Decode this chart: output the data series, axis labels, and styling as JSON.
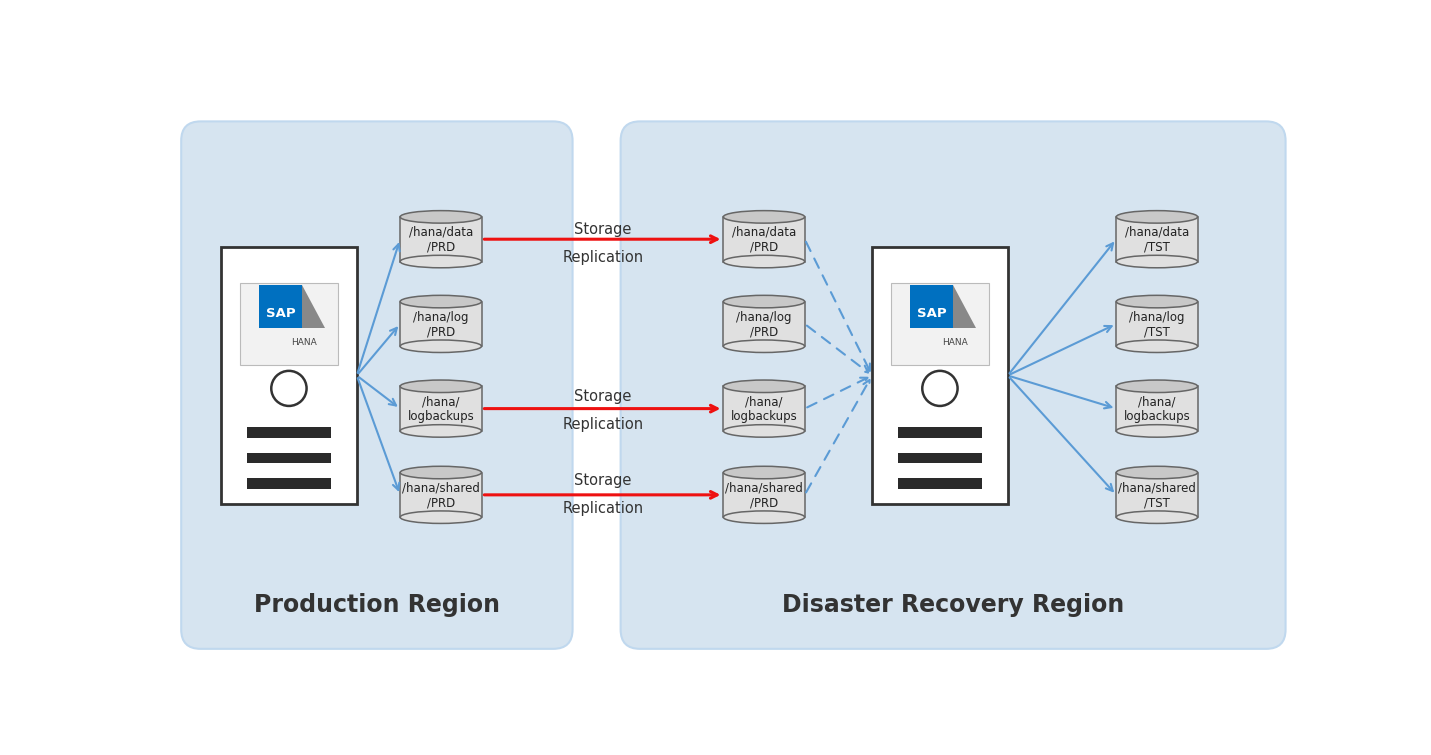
{
  "bg_color": "#FFFFFF",
  "region_bg": "#D6E4F0",
  "region_border": "#C0D8EE",
  "server_box_color": "#FFFFFF",
  "server_box_border": "#333333",
  "cylinder_face": "#E0E0E0",
  "cylinder_top": "#C8C8C8",
  "cylinder_border": "#666666",
  "blue_arrow": "#5B9BD5",
  "red_arrow": "#EE1111",
  "dashed_arrow": "#5B9BD5",
  "text_color": "#333333",
  "label_fontsize": 10.5,
  "region_label_fontsize": 17,
  "prod_region_label": "Production Region",
  "dr_region_label": "Disaster Recovery Region",
  "prod_disks": [
    "/hana/data\n/PRD",
    "/hana/log\n/PRD",
    "/hana/\nlogbackups",
    "/hana/shared\n/PRD"
  ],
  "dr_disks_prd": [
    "/hana/data\n/PRD",
    "/hana/log\n/PRD",
    "/hana/\nlogbackups",
    "/hana/shared\n/PRD"
  ],
  "dr_disks_tst": [
    "/hana/data\n/TST",
    "/hana/log\n/TST",
    "/hana/\nlogbackups",
    "/hana/shared\n/TST"
  ],
  "sap_blue": "#0070C0",
  "sap_gray": "#707070",
  "sap_dark": "#555555"
}
